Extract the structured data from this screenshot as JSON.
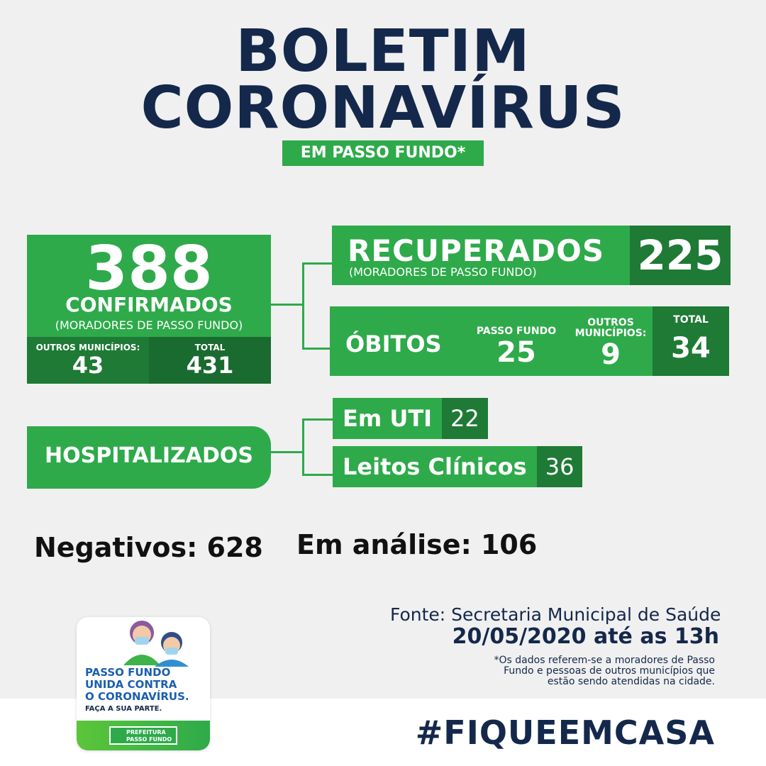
{
  "header": {
    "title_line1": "BOLETIM",
    "title_line2": "CORONAVÍRUS",
    "subtitle": "EM PASSO FUNDO*"
  },
  "confirmed": {
    "value": "388",
    "label": "CONFIRMADOS",
    "sub": "(MORADORES DE PASSO FUNDO)",
    "other_label": "OUTROS MUNICÍPIOS:",
    "other_value": "43",
    "total_label": "TOTAL",
    "total_value": "431"
  },
  "recovered": {
    "label": "RECUPERADOS",
    "sub": "(MORADORES DE PASSO FUNDO)",
    "value": "225"
  },
  "deaths": {
    "label": "ÓBITOS",
    "pf_label": "PASSO FUNDO",
    "pf_value": "25",
    "other_label_1": "OUTROS",
    "other_label_2": "MUNICÍPIOS:",
    "other_value": "9",
    "total_label": "TOTAL",
    "total_value": "34"
  },
  "hospitalized": {
    "label": "HOSPITALIZADOS",
    "uti_label": "Em UTI",
    "uti_value": "22",
    "beds_label": "Leitos Clínicos",
    "beds_value": "36"
  },
  "stats": {
    "negatives": "Negativos: 628",
    "analysis": "Em análise: 106"
  },
  "footer": {
    "source": "Fonte: Secretaria Municipal de Saúde",
    "date": "20/05/2020 até as 13h",
    "note_1": "*Os dados referem-se a moradores de Passo",
    "note_2": "Fundo e pessoas de outros municípios que",
    "note_3": "estão sendo atendidas na cidade.",
    "hashtag": "#FIQUEEMCASA"
  },
  "campaign": {
    "line1": "PASSO FUNDO",
    "line2": "UNIDA CONTRA",
    "line3": "O CORONAVÍRUS.",
    "small": "FAÇA A SUA PARTE.",
    "logo1": "PREFEITURA",
    "logo2": "PASSO FUNDO"
  },
  "colors": {
    "navy": "#14284b",
    "green": "#2eaa4a",
    "dark_green": "#1e7a35",
    "background": "#f0f0f0"
  }
}
